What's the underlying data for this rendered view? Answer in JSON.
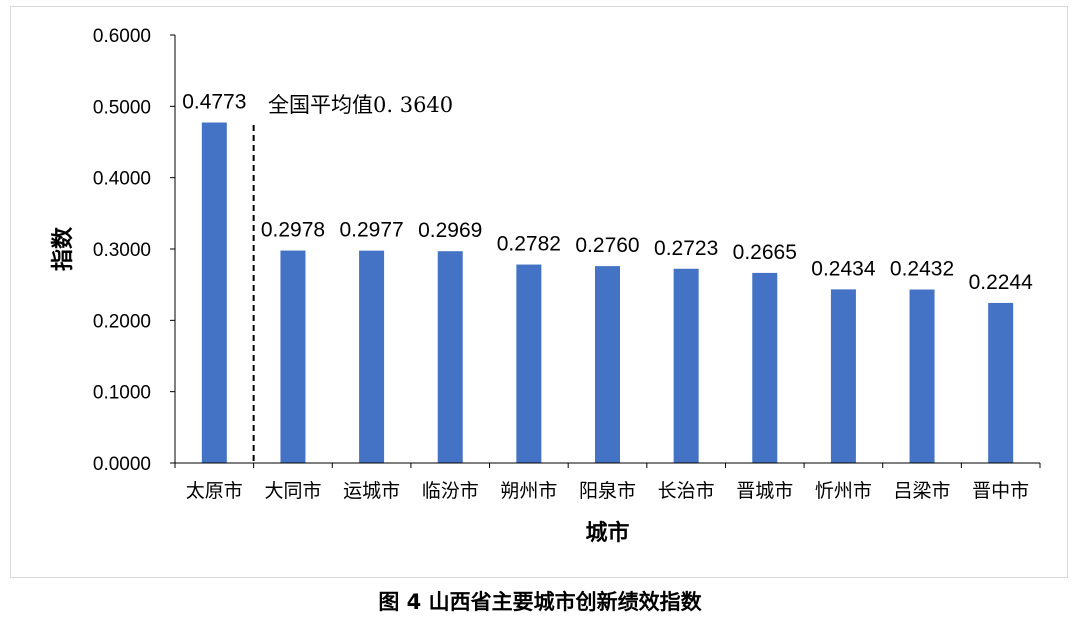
{
  "caption": "图 4 山西省主要城市创新绩效指数",
  "chart_data": {
    "type": "bar",
    "xlabel": "城市",
    "ylabel": "指数",
    "ylim": [
      0,
      0.6
    ],
    "yticks": [
      "0.0000",
      "0.1000",
      "0.2000",
      "0.3000",
      "0.4000",
      "0.5000",
      "0.6000"
    ],
    "categories": [
      "太原市",
      "大同市",
      "运城市",
      "临汾市",
      "朔州市",
      "阳泉市",
      "长治市",
      "晋城市",
      "忻州市",
      "吕梁市",
      "晋中市"
    ],
    "values": [
      0.4773,
      0.2978,
      0.2977,
      0.2969,
      0.2782,
      0.276,
      0.2723,
      0.2665,
      0.2434,
      0.2432,
      0.2244
    ],
    "data_labels": [
      "0.4773",
      "0.2978",
      "0.2977",
      "0.2969",
      "0.2782",
      "0.2760",
      "0.2723",
      "0.2665",
      "0.2434",
      "0.2432",
      "0.2244"
    ],
    "bar_color": "#4472C4",
    "reference_line": {
      "label": "全国平均值0. 3640",
      "value": 0.364
    },
    "grid": false,
    "legend": "none"
  }
}
